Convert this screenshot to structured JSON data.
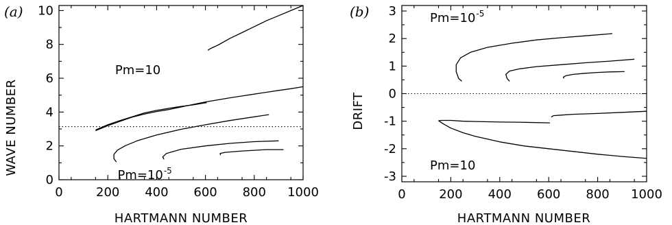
{
  "chart_data": [
    {
      "type": "line",
      "panel_label": "(a)",
      "xlabel": "HARTMANN NUMBER",
      "ylabel": "WAVE NUMBER",
      "xlim": [
        0,
        1000
      ],
      "ylim": [
        0,
        10.3
      ],
      "xticks": [
        0,
        200,
        400,
        600,
        800,
        1000
      ],
      "yticks": [
        0,
        2,
        4,
        6,
        8,
        10
      ],
      "grid": false,
      "reference_line": {
        "y": 3.14,
        "style": "dotted"
      },
      "annotations": [
        {
          "text": "Pm=10",
          "x": 230,
          "y": 6.25
        },
        {
          "text": "Pm=10",
          "superscript": "-5",
          "x": 240,
          "y": 0.05
        }
      ],
      "series": [
        {
          "x": [
            150,
            200,
            250,
            300,
            350,
            400,
            450,
            500,
            550,
            600,
            605
          ],
          "y": [
            2.95,
            3.25,
            3.5,
            3.72,
            3.95,
            4.1,
            4.22,
            4.33,
            4.43,
            4.55,
            4.55
          ]
        },
        {
          "x": [
            610,
            620,
            650,
            700,
            750,
            800,
            850,
            900,
            950,
            1000
          ],
          "y": [
            7.65,
            7.75,
            7.95,
            8.35,
            8.7,
            9.05,
            9.4,
            9.7,
            10.0,
            10.3
          ]
        },
        {
          "x": [
            150,
            200,
            250,
            300,
            350,
            400,
            450,
            500,
            550,
            600,
            650,
            700,
            750,
            800,
            850,
            900,
            950,
            1000
          ],
          "y": [
            2.9,
            3.2,
            3.45,
            3.7,
            3.88,
            4.03,
            4.15,
            4.3,
            4.45,
            4.6,
            4.72,
            4.84,
            4.95,
            5.06,
            5.17,
            5.28,
            5.38,
            5.5
          ]
        },
        {
          "x": [
            235,
            225,
            225,
            240,
            270,
            320,
            400,
            500,
            600,
            700,
            800,
            860
          ],
          "y": [
            1.05,
            1.25,
            1.5,
            1.75,
            2.0,
            2.3,
            2.65,
            2.98,
            3.25,
            3.5,
            3.72,
            3.85
          ]
        },
        {
          "x": [
            430,
            425,
            440,
            500,
            600,
            700,
            800,
            900
          ],
          "y": [
            1.2,
            1.35,
            1.55,
            1.8,
            2.0,
            2.15,
            2.25,
            2.3
          ]
        },
        {
          "x": [
            662,
            660,
            680,
            750,
            850,
            920
          ],
          "y": [
            1.45,
            1.55,
            1.62,
            1.7,
            1.78,
            1.78
          ]
        }
      ]
    },
    {
      "type": "line",
      "panel_label": "(b)",
      "xlabel": "HARTMANN NUMBER",
      "ylabel": "DRIFT",
      "xlim": [
        0,
        1000
      ],
      "ylim": [
        -3.2,
        3.2
      ],
      "xticks": [
        0,
        200,
        400,
        600,
        800,
        1000
      ],
      "yticks": [
        -3,
        -2,
        -1,
        0,
        1,
        2,
        3
      ],
      "grid": false,
      "reference_line": {
        "y": 0,
        "style": "dotted"
      },
      "annotations": [
        {
          "text": "Pm=10",
          "superscript": "-5",
          "x": 115,
          "y": 2.6
        },
        {
          "text": "Pm=10",
          "x": 115,
          "y": -2.75
        }
      ],
      "series": [
        {
          "x": [
            245,
            232,
            222,
            222,
            240,
            280,
            350,
            450,
            550,
            650,
            750,
            860
          ],
          "y": [
            0.45,
            0.55,
            0.8,
            1.05,
            1.3,
            1.5,
            1.68,
            1.83,
            1.95,
            2.03,
            2.1,
            2.18
          ]
        },
        {
          "x": [
            440,
            430,
            425,
            440,
            480,
            550,
            650,
            750,
            850,
            950
          ],
          "y": [
            0.45,
            0.55,
            0.7,
            0.82,
            0.9,
            0.98,
            1.05,
            1.12,
            1.18,
            1.25
          ]
        },
        {
          "x": [
            662,
            660,
            670,
            700,
            750,
            800,
            850,
            910
          ],
          "y": [
            0.55,
            0.6,
            0.65,
            0.7,
            0.74,
            0.77,
            0.79,
            0.8
          ]
        },
        {
          "x": [
            150,
            165,
            200,
            250,
            300,
            400,
            500,
            605
          ],
          "y": [
            -0.98,
            -0.97,
            -0.97,
            -1.0,
            -1.01,
            -1.03,
            -1.04,
            -1.06
          ]
        },
        {
          "x": [
            610,
            620,
            650,
            700,
            800,
            900,
            1000
          ],
          "y": [
            -0.85,
            -0.8,
            -0.78,
            -0.75,
            -0.72,
            -0.68,
            -0.64
          ]
        },
        {
          "x": [
            150,
            170,
            200,
            250,
            300,
            400,
            500,
            600,
            700,
            800,
            900,
            1000
          ],
          "y": [
            -0.98,
            -1.1,
            -1.25,
            -1.42,
            -1.55,
            -1.75,
            -1.9,
            -2.0,
            -2.1,
            -2.2,
            -2.28,
            -2.35
          ]
        }
      ]
    }
  ]
}
